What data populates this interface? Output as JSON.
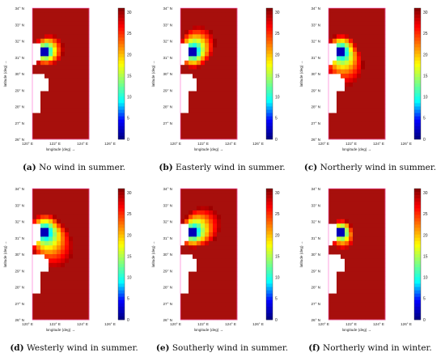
{
  "colors": {
    "land_fill": "#ffffff",
    "sea_base": "#a70f0c",
    "colormap": [
      "#00007f",
      "#0000ff",
      "#00ffff",
      "#7fff7f",
      "#ffff00",
      "#ff7f00",
      "#ff0000",
      "#7f0000"
    ],
    "pink_artifact": "#ff66cc"
  },
  "chart_data": [
    {
      "type": "heatmap",
      "label": "(a)",
      "caption": "No wind in summer.",
      "xlabel": "longitude (deg) →",
      "ylabel": "latitude (deg) →",
      "xticks": [
        "120° E",
        "122° E",
        "124° E",
        "126° E"
      ],
      "yticks": [
        "26° N",
        "27° N",
        "28° N",
        "29° N",
        "30° N",
        "31° N",
        "32° N",
        "33° N",
        "34° N"
      ],
      "colorbar_ticks": [
        "0",
        "5",
        "10",
        "15",
        "20",
        "25",
        "30"
      ],
      "clim": [
        0,
        31
      ],
      "xlim": [
        120,
        126
      ],
      "ylim": [
        26,
        34
      ],
      "plume": {
        "dir_lon": 0.6,
        "dir_lat": 0.2,
        "extent": 0.9
      }
    },
    {
      "type": "heatmap",
      "label": "(b)",
      "caption": "Easterly wind in summer.",
      "xlabel": "longitude (deg) →",
      "ylabel": "latitude (deg) →",
      "xticks": [
        "120° E",
        "122° E",
        "124° E",
        "126° E"
      ],
      "yticks": [
        "27° N",
        "28° N",
        "29° N",
        "30° N",
        "31° N",
        "32° N",
        "33° N",
        "34° N"
      ],
      "colorbar_ticks": [
        "0",
        "5",
        "10",
        "15",
        "20",
        "25",
        "30"
      ],
      "clim": [
        0,
        31
      ],
      "xlim": [
        120,
        126
      ],
      "ylim": [
        26,
        34
      ],
      "plume": {
        "dir_lon": 0.5,
        "dir_lat": 0.6,
        "extent": 1.3
      }
    },
    {
      "type": "heatmap",
      "label": "(c)",
      "caption": "Northerly wind in summer.",
      "xlabel": "longitude (deg) →",
      "ylabel": "latitude (deg) →",
      "xticks": [
        "120° E",
        "122° E",
        "124° E",
        "126° E"
      ],
      "yticks": [
        "26° N",
        "27° N",
        "28° N",
        "29° N",
        "30° N",
        "31° N",
        "32° N",
        "33° N",
        "34° N"
      ],
      "colorbar_ticks": [
        "0",
        "5",
        "10",
        "15",
        "20",
        "25",
        "30"
      ],
      "clim": [
        0,
        31
      ],
      "xlim": [
        120,
        126
      ],
      "ylim": [
        26,
        34
      ],
      "plume": {
        "dir_lon": 0.3,
        "dir_lat": -1.0,
        "extent": 1.3
      }
    },
    {
      "type": "heatmap",
      "label": "(d)",
      "caption": "Westerly wind in summer.",
      "xlabel": "longitude (deg) →",
      "ylabel": "latitude (deg) →",
      "xticks": [
        "120° E",
        "122° E",
        "124° E",
        "126° E"
      ],
      "yticks": [
        "26° N",
        "27° N",
        "28° N",
        "29° N",
        "30° N",
        "31° N",
        "32° N",
        "33° N",
        "34° N"
      ],
      "colorbar_ticks": [
        "0",
        "5",
        "10",
        "15",
        "20",
        "25",
        "30"
      ],
      "clim": [
        0,
        31
      ],
      "xlim": [
        120,
        126
      ],
      "ylim": [
        26,
        34
      ],
      "plume": {
        "dir_lon": 0.6,
        "dir_lat": -0.9,
        "extent": 1.5
      }
    },
    {
      "type": "heatmap",
      "label": "(e)",
      "caption": "Southerly wind in summer.",
      "xlabel": "longitude (deg) →",
      "ylabel": "latitude (deg) →",
      "xticks": [
        "120° E",
        "122° E",
        "124° E",
        "126° E"
      ],
      "yticks": [
        "26° N",
        "27° N",
        "28° N",
        "29° N",
        "30° N",
        "31° N",
        "32° N",
        "33° N",
        "34° N"
      ],
      "colorbar_ticks": [
        "0",
        "5",
        "10",
        "15",
        "20",
        "25",
        "30"
      ],
      "clim": [
        0,
        31
      ],
      "xlim": [
        120,
        126
      ],
      "ylim": [
        26,
        34
      ],
      "plume": {
        "dir_lon": 0.9,
        "dir_lat": 0.5,
        "extent": 1.2
      }
    },
    {
      "type": "heatmap",
      "label": "(f)",
      "caption": "Northerly wind in winter.",
      "xlabel": "longitude (deg) →",
      "ylabel": "latitude (deg) →",
      "xticks": [
        "120° E",
        "122° E",
        "124° E",
        "126° E"
      ],
      "yticks": [
        "26° N",
        "27° N",
        "28° N",
        "29° N",
        "30° N",
        "31° N",
        "32° N",
        "33° N",
        "34° N"
      ],
      "colorbar_ticks": [
        "0",
        "5",
        "10",
        "15",
        "20",
        "25",
        "30"
      ],
      "clim": [
        0,
        31
      ],
      "xlim": [
        120,
        126
      ],
      "ylim": [
        26,
        34
      ],
      "plume": {
        "dir_lon": 0.2,
        "dir_lat": -0.6,
        "extent": 0.6
      }
    }
  ]
}
